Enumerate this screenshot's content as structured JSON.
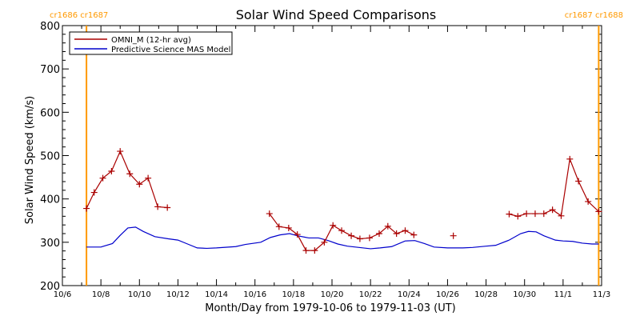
{
  "chart_data": {
    "type": "line",
    "title": "Solar Wind Speed Comparisons",
    "xlabel": "Month/Day from 1979-10-06 to 1979-11-03 (UT)",
    "ylabel": "Solar Wind Speed (km/s)",
    "x_tick_labels": [
      "10/6",
      "10/8",
      "10/10",
      "10/12",
      "10/14",
      "10/16",
      "10/18",
      "10/20",
      "10/22",
      "10/24",
      "10/26",
      "10/28",
      "10/30",
      "11/1",
      "11/3"
    ],
    "x_ticks_day": [
      0,
      2,
      4,
      6,
      8,
      10,
      12,
      14,
      16,
      18,
      20,
      22,
      24,
      26,
      28
    ],
    "xlim_day": [
      0,
      28
    ],
    "ylim": [
      200,
      800
    ],
    "y_ticks": [
      200,
      300,
      400,
      500,
      600,
      700,
      800
    ],
    "legend_position": "top-left",
    "carrington_markers": [
      {
        "day": 1.25,
        "label": "cr1686 cr1687",
        "color": "#ff9900"
      },
      {
        "day": 27.85,
        "label": "cr1687 cr1688",
        "color": "#ff9900"
      }
    ],
    "series": [
      {
        "name": "OMNI_M (12-hr avg)",
        "color": "#aa0000",
        "marker": "+",
        "segments": [
          [
            [
              1.25,
              378
            ],
            [
              1.65,
              415
            ],
            [
              2.1,
              448
            ],
            [
              2.55,
              464
            ],
            [
              3.0,
              510
            ],
            [
              3.5,
              458
            ],
            [
              4.0,
              434
            ],
            [
              4.45,
              448
            ],
            [
              4.95,
              382
            ],
            [
              5.45,
              380
            ]
          ],
          [
            [
              10.75,
              366
            ],
            [
              11.25,
              336
            ],
            [
              11.75,
              333
            ],
            [
              12.2,
              318
            ],
            [
              12.65,
              281
            ],
            [
              13.1,
              281
            ],
            [
              13.6,
              300
            ],
            [
              14.05,
              339
            ],
            [
              14.5,
              327
            ],
            [
              15.0,
              315
            ],
            [
              15.45,
              308
            ],
            [
              15.95,
              310
            ],
            [
              16.45,
              320
            ],
            [
              16.9,
              337
            ],
            [
              17.35,
              320
            ],
            [
              17.8,
              327
            ],
            [
              18.25,
              317
            ]
          ],
          [
            [
              23.2,
              365
            ],
            [
              23.65,
              360
            ],
            [
              24.1,
              366
            ],
            [
              24.55,
              366
            ],
            [
              25.0,
              366
            ],
            [
              25.45,
              375
            ],
            [
              25.9,
              361
            ],
            [
              26.35,
              492
            ],
            [
              26.8,
              441
            ],
            [
              27.3,
              394
            ],
            [
              27.85,
              371
            ]
          ]
        ],
        "isolated_points": [
          [
            20.3,
            315
          ]
        ]
      },
      {
        "name": "Predictive Science MAS Model",
        "color": "#0000cc",
        "points": [
          [
            1.25,
            289
          ],
          [
            2.0,
            289
          ],
          [
            2.6,
            297
          ],
          [
            3.0,
            316
          ],
          [
            3.4,
            333
          ],
          [
            3.8,
            335
          ],
          [
            4.2,
            325
          ],
          [
            4.8,
            313
          ],
          [
            5.5,
            308
          ],
          [
            6.0,
            305
          ],
          [
            6.5,
            296
          ],
          [
            7.0,
            287
          ],
          [
            7.5,
            286
          ],
          [
            8.0,
            287
          ],
          [
            9.0,
            290
          ],
          [
            9.5,
            295
          ],
          [
            10.3,
            300
          ],
          [
            10.8,
            311
          ],
          [
            11.3,
            317
          ],
          [
            11.8,
            320
          ],
          [
            12.2,
            315
          ],
          [
            12.8,
            310
          ],
          [
            13.3,
            310
          ],
          [
            13.8,
            304
          ],
          [
            14.3,
            296
          ],
          [
            14.8,
            291
          ],
          [
            15.4,
            288
          ],
          [
            16.0,
            285
          ],
          [
            16.5,
            287
          ],
          [
            17.1,
            290
          ],
          [
            17.8,
            303
          ],
          [
            18.3,
            304
          ],
          [
            18.8,
            297
          ],
          [
            19.3,
            289
          ],
          [
            20.0,
            287
          ],
          [
            20.8,
            287
          ],
          [
            21.3,
            288
          ],
          [
            22.0,
            291
          ],
          [
            22.5,
            293
          ],
          [
            23.2,
            305
          ],
          [
            23.8,
            320
          ],
          [
            24.2,
            325
          ],
          [
            24.6,
            324
          ],
          [
            25.0,
            315
          ],
          [
            25.6,
            305
          ],
          [
            26.0,
            303
          ],
          [
            26.5,
            302
          ],
          [
            27.0,
            298
          ],
          [
            27.5,
            296
          ],
          [
            27.85,
            296
          ]
        ]
      }
    ]
  }
}
